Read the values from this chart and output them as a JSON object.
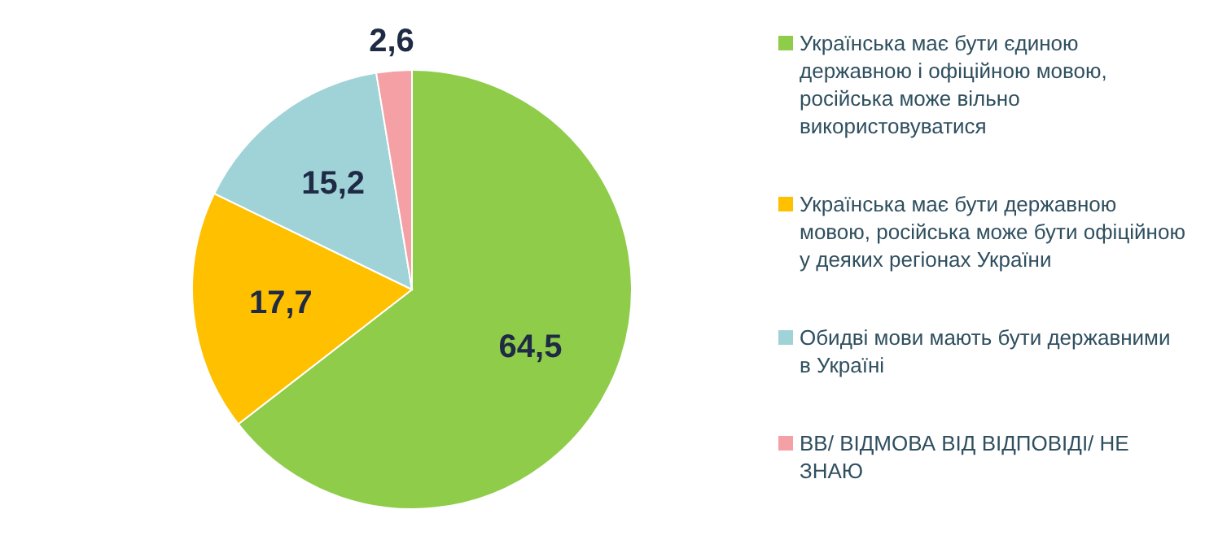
{
  "chart_data": {
    "type": "pie",
    "categories": [
      "Українська має бути єдиною державною і офіційною мовою, російська може вільно використовуватися",
      "Українська має бути державною мовою, російська може бути офіційною у деяких регіонах України",
      "Обидві мови мають бути державними в Україні",
      "ВВ/ ВІДМОВА ВІД ВІДПОВІДІ/ НЕ ЗНАЮ"
    ],
    "values": [
      64.5,
      17.7,
      15.2,
      2.6
    ],
    "colors": [
      "#8fcc4a",
      "#ffc000",
      "#9fd3d8",
      "#f4a0a4"
    ],
    "value_labels": [
      "64,5",
      "17,7",
      "15,2",
      "2,6"
    ],
    "legend": "right"
  }
}
